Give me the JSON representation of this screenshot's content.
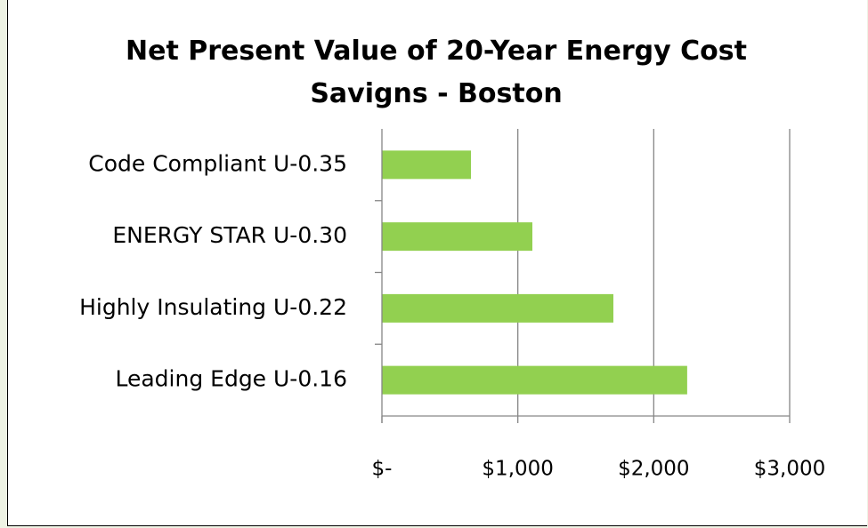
{
  "chart_data": {
    "type": "bar",
    "orientation": "horizontal",
    "title": "Net Present Value of 20-Year Energy Cost Savigns - Boston",
    "categories": [
      "Code Compliant U-0.35",
      "ENERGY STAR U-0.30",
      "Highly Insulating U-0.22",
      "Leading Edge U-0.16"
    ],
    "values": [
      655,
      1107,
      1703,
      2246
    ],
    "color": "#92d050",
    "xlim": [
      0,
      3000
    ],
    "xticks": [
      {
        "value": 0,
        "label": "$-"
      },
      {
        "value": 1000,
        "label": "$1,000"
      },
      {
        "value": 2000,
        "label": "$2,000"
      },
      {
        "value": 3000,
        "label": "$3,000"
      }
    ],
    "grid": true
  }
}
